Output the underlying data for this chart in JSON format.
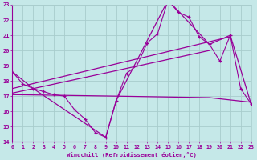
{
  "xlabel": "Windchill (Refroidissement éolien,°C)",
  "xlim": [
    0,
    23
  ],
  "ylim": [
    14,
    23
  ],
  "yticks": [
    14,
    15,
    16,
    17,
    18,
    19,
    20,
    21,
    22,
    23
  ],
  "xticks": [
    0,
    1,
    2,
    3,
    4,
    5,
    6,
    7,
    8,
    9,
    10,
    11,
    12,
    13,
    14,
    15,
    16,
    17,
    18,
    19,
    20,
    21,
    22,
    23
  ],
  "background_color": "#c5e8e8",
  "line_color": "#990099",
  "grid_color": "#a8cccc",
  "line1_x": [
    0,
    1,
    2,
    3,
    4,
    5,
    6,
    7,
    8,
    9,
    10,
    11,
    12,
    13,
    14,
    15,
    16,
    17,
    18,
    19,
    20,
    21,
    22,
    23
  ],
  "line1_y": [
    18.6,
    17.8,
    17.5,
    17.3,
    17.1,
    17.0,
    16.1,
    15.5,
    14.6,
    14.3,
    16.7,
    18.5,
    19.0,
    20.5,
    21.1,
    23.3,
    22.5,
    22.2,
    20.9,
    20.4,
    19.3,
    21.0,
    17.5,
    16.5
  ],
  "line2_x": [
    0,
    2,
    9,
    10,
    15,
    19,
    21,
    23
  ],
  "line2_y": [
    18.6,
    17.5,
    14.3,
    16.7,
    23.3,
    20.4,
    21.0,
    16.5
  ],
  "line3_x": [
    0,
    21
  ],
  "line3_y": [
    17.5,
    20.9
  ],
  "line4_x": [
    0,
    19
  ],
  "line4_y": [
    17.2,
    20.0
  ],
  "line5_x": [
    0,
    10,
    19,
    23
  ],
  "line5_y": [
    17.1,
    17.0,
    16.9,
    16.6
  ]
}
